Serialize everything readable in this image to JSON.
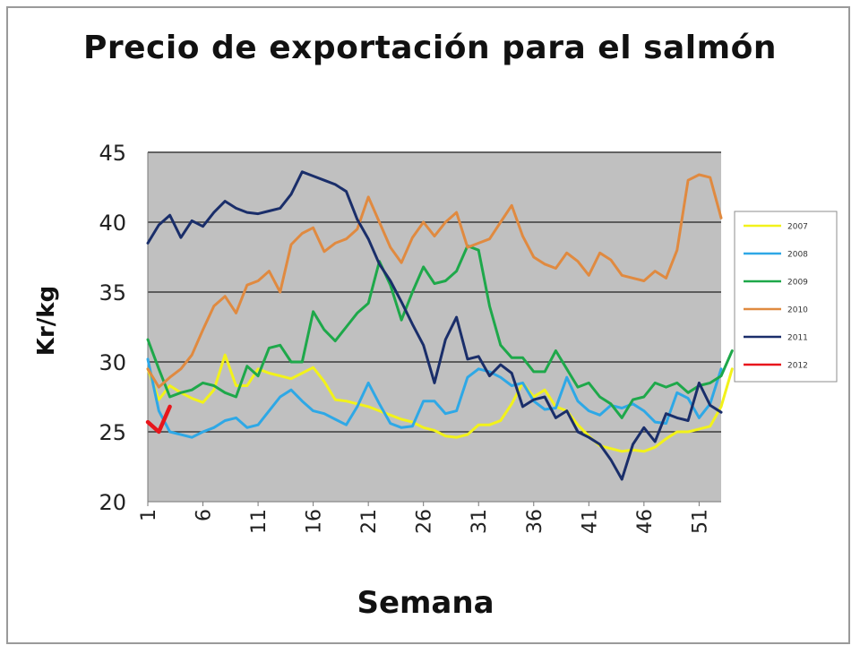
{
  "chart_data": {
    "type": "line",
    "title": "Precio de exportación para el salmón",
    "xlabel": "Semana",
    "ylabel": "Kr/kg",
    "ylim": [
      20,
      45
    ],
    "xlim": [
      1,
      53
    ],
    "yticks": [
      20,
      25,
      30,
      35,
      40,
      45
    ],
    "xticks": [
      1,
      6,
      11,
      16,
      21,
      26,
      31,
      36,
      41,
      46,
      51
    ],
    "grid": true,
    "legend_position": "right",
    "background": "#c0c0c0",
    "series": [
      {
        "name": "2007",
        "color": "#f2f21a",
        "values": [
          29.5,
          27.3,
          28.3,
          27.8,
          27.4,
          27.1,
          28.0,
          30.5,
          28.3,
          28.3,
          29.5,
          29.2,
          29.0,
          28.8,
          29.2,
          29.6,
          28.6,
          27.3,
          27.2,
          27.0,
          26.8,
          26.5,
          26.2,
          25.9,
          25.7,
          25.3,
          25.1,
          24.7,
          24.6,
          24.8,
          25.5,
          25.5,
          25.8,
          27.0,
          28.5,
          27.5,
          28.0,
          26.8,
          26.5,
          25.5,
          24.7,
          24.0,
          23.8,
          23.6,
          23.7,
          23.6,
          23.9,
          24.5,
          25.0,
          25.0,
          25.2,
          25.4,
          26.8,
          29.5
        ]
      },
      {
        "name": "2008",
        "color": "#2ea8e6",
        "values": [
          30.2,
          26.5,
          25.0,
          24.8,
          24.6,
          25.0,
          25.3,
          25.8,
          26.0,
          25.3,
          25.5,
          26.5,
          27.5,
          28.0,
          27.2,
          26.5,
          26.3,
          25.9,
          25.5,
          26.8,
          28.5,
          27.0,
          25.6,
          25.3,
          25.4,
          27.2,
          27.2,
          26.3,
          26.5,
          28.9,
          29.5,
          29.3,
          28.9,
          28.3,
          28.5,
          27.2,
          26.6,
          26.7,
          28.9,
          27.2,
          26.5,
          26.2,
          26.9,
          26.7,
          27.0,
          26.5,
          25.7,
          25.6,
          27.8,
          27.4,
          26.0,
          27.0,
          29.5
        ]
      },
      {
        "name": "2009",
        "color": "#1ea84a",
        "values": [
          31.6,
          29.5,
          27.5,
          27.8,
          28.0,
          28.5,
          28.3,
          27.8,
          27.5,
          29.7,
          29.0,
          31.0,
          31.2,
          30.0,
          30.0,
          33.6,
          32.3,
          31.5,
          32.5,
          33.5,
          34.2,
          37.2,
          35.5,
          33.0,
          35.0,
          36.8,
          35.6,
          35.8,
          36.5,
          38.3,
          38.0,
          34.0,
          31.2,
          30.3,
          30.3,
          29.3,
          29.3,
          30.8,
          29.5,
          28.2,
          28.5,
          27.5,
          27.0,
          26.0,
          27.3,
          27.5,
          28.5,
          28.2,
          28.5,
          27.8,
          28.3,
          28.5,
          29.0,
          30.8
        ]
      },
      {
        "name": "2010",
        "color": "#e08a40",
        "values": [
          29.5,
          28.2,
          28.9,
          29.5,
          30.5,
          32.3,
          34.0,
          34.7,
          33.5,
          35.5,
          35.8,
          36.5,
          35.0,
          38.4,
          39.2,
          39.6,
          37.9,
          38.5,
          38.8,
          39.5,
          41.8,
          40.0,
          38.2,
          37.1,
          38.9,
          40.0,
          39.0,
          40.0,
          40.7,
          38.2,
          38.5,
          38.8,
          40.0,
          41.2,
          39.0,
          37.5,
          37.0,
          36.7,
          37.8,
          37.2,
          36.2,
          37.8,
          37.3,
          36.2,
          36.0,
          35.8,
          36.5,
          36.0,
          38.0,
          43.0,
          43.4,
          43.2,
          40.3
        ]
      },
      {
        "name": "2011",
        "color": "#1a2e6a",
        "values": [
          38.5,
          39.8,
          40.5,
          38.9,
          40.1,
          39.7,
          40.7,
          41.5,
          41.0,
          40.7,
          40.6,
          40.8,
          41.0,
          42.0,
          43.6,
          43.3,
          43.0,
          42.7,
          42.2,
          40.2,
          38.8,
          37.0,
          35.8,
          34.3,
          32.7,
          31.2,
          28.5,
          31.6,
          33.2,
          30.2,
          30.4,
          29.0,
          29.8,
          29.2,
          26.8,
          27.3,
          27.5,
          26.0,
          26.5,
          25.0,
          24.6,
          24.1,
          23.0,
          21.6,
          24.1,
          25.3,
          24.3,
          26.3,
          26.0,
          25.8,
          28.5,
          26.9,
          26.4
        ]
      },
      {
        "name": "2012",
        "color": "#e8161c",
        "values": [
          25.7,
          25.0,
          26.8
        ]
      }
    ]
  }
}
